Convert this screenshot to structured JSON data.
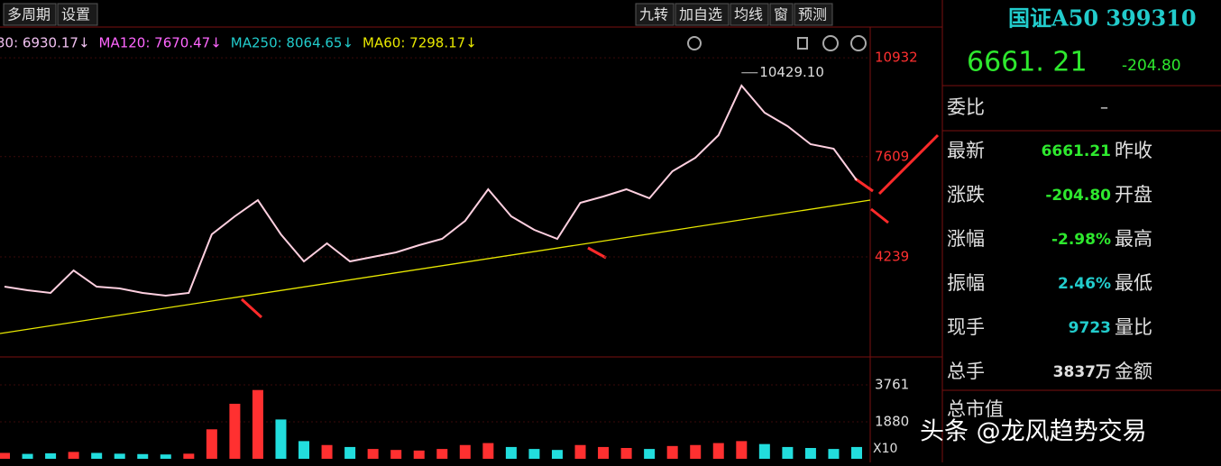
{
  "toolbar": {
    "left": [
      "多周期",
      "设置"
    ],
    "right": [
      "九转",
      "加自选",
      "均线",
      "窗",
      "预测"
    ]
  },
  "ma_legend": [
    {
      "text": "30: 6930.17↓",
      "color": "#f0c0f0"
    },
    {
      "text": "MA120: 7670.47↓",
      "color": "#ff66ff"
    },
    {
      "text": "MA250: 8064.65↓",
      "color": "#22cccc"
    },
    {
      "text": "MA60: 7298.17↓",
      "color": "#e8e800"
    }
  ],
  "price_chart": {
    "ylim": [
      906,
      11663
    ],
    "yticks": [
      4239,
      7609,
      10932
    ],
    "peak_label": "10429.10",
    "peak_value": 10429.1,
    "values": [
      3239,
      3118,
      3027,
      3784,
      3239,
      3179,
      3027,
      2936,
      3027,
      4997,
      5603,
      6148,
      4997,
      4087,
      4694,
      4087,
      4239,
      4391,
      4633,
      4845,
      5451,
      6512,
      5603,
      5148,
      4845,
      6057,
      6269,
      6512,
      6209,
      7118,
      7572,
      8330,
      9996,
      9087,
      8633,
      8027,
      7875,
      6815
    ],
    "trendline": [
      1664,
      6148
    ]
  },
  "volume_chart": {
    "ylim": [
      0,
      4541
    ],
    "yticks": [
      1880,
      3761
    ],
    "scale_label": "X10",
    "values": [
      300,
      250,
      280,
      350,
      300,
      260,
      240,
      220,
      260,
      1500,
      2800,
      3500,
      2000,
      900,
      700,
      600,
      500,
      450,
      420,
      500,
      700,
      800,
      600,
      500,
      450,
      700,
      600,
      550,
      500,
      650,
      700,
      800,
      900,
      750,
      600,
      550,
      500,
      600
    ]
  },
  "quote": {
    "title": "国证A50 399310",
    "price": "6661. 21",
    "change": "-204.80",
    "ratio_label": "委比",
    "ratio_value": "–",
    "rows": [
      {
        "label": "最新",
        "value": "6661.21",
        "label2": "昨收",
        "color": "#2ee82e"
      },
      {
        "label": "涨跌",
        "value": "-204.80",
        "label2": "开盘",
        "color": "#2ee82e"
      },
      {
        "label": "涨幅",
        "value": "-2.98%",
        "label2": "最高",
        "color": "#2ee82e"
      },
      {
        "label": "振幅",
        "value": "2.46%",
        "label2": "最低",
        "color": "#22cccc"
      },
      {
        "label": "现手",
        "value": "9723",
        "label2": "量比",
        "color": "#22cccc"
      },
      {
        "label": "总手",
        "value": "3837万",
        "label2": "金额",
        "color": "#e0e0e0"
      }
    ],
    "market_cap": "总市值"
  },
  "watermark": "头条 @龙风趋势交易"
}
